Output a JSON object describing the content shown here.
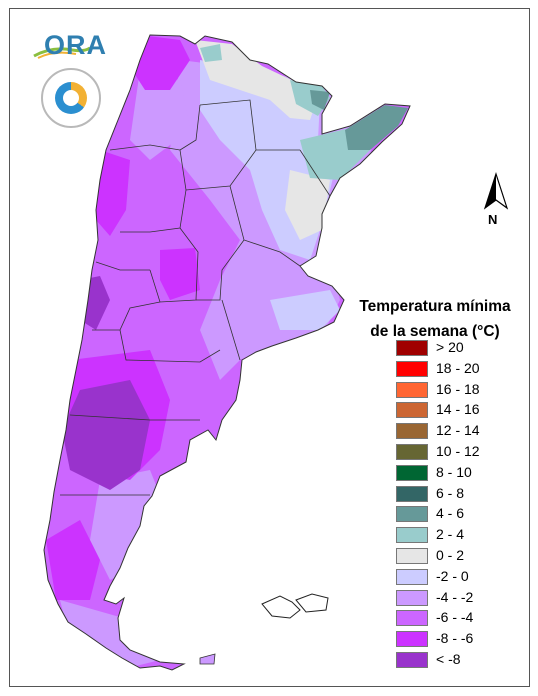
{
  "logos": {
    "ora_text": "ORA"
  },
  "north_arrow": {
    "label": "N"
  },
  "legend": {
    "title_line1": "Temperatura mínima",
    "title_line2": "de la semana (°C)",
    "items": [
      {
        "label": "> 20",
        "color": "#a00000"
      },
      {
        "label": "18 - 20",
        "color": "#ff0000"
      },
      {
        "label": "16 - 18",
        "color": "#ff6633"
      },
      {
        "label": "14 - 16",
        "color": "#cc6633"
      },
      {
        "label": "12 - 14",
        "color": "#996633"
      },
      {
        "label": "10 - 12",
        "color": "#666633"
      },
      {
        "label": "8 - 10",
        "color": "#006633"
      },
      {
        "label": "6 - 8",
        "color": "#336666"
      },
      {
        "label": "4 - 6",
        "color": "#669999"
      },
      {
        "label": "2 - 4",
        "color": "#99cccc"
      },
      {
        "label": "0 - 2",
        "color": "#e6e6e6"
      },
      {
        "label": "-2 - 0",
        "color": "#ccccff"
      },
      {
        "label": "-4 - -2",
        "color": "#cc99ff"
      },
      {
        "label": "-6 - -4",
        "color": "#cc66ff"
      },
      {
        "label": "-8 - -6",
        "color": "#cc33ff"
      },
      {
        "label": "< -8",
        "color": "#9933cc"
      }
    ]
  },
  "map_colors": {
    "lt_minus8": "#9933cc",
    "minus8_minus6": "#cc33ff",
    "minus6_minus4": "#cc66ff",
    "minus4_minus2": "#cc99ff",
    "minus2_0": "#ccccff",
    "zero_2": "#e6e6e6",
    "two_4": "#99cccc",
    "four_6": "#669999",
    "border": "#333333"
  }
}
